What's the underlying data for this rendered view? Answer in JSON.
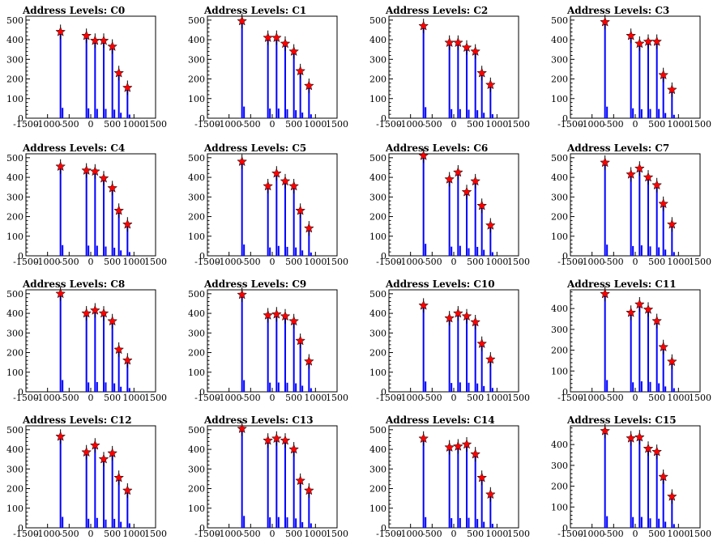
{
  "chart_data": [
    {
      "title": "Address Levels: C0",
      "type": "bar",
      "xlim": [
        -1500,
        1500
      ],
      "ylim": [
        0,
        520
      ],
      "xticks": [
        "-1500",
        "-1000",
        "-500",
        "0",
        "500",
        "1000",
        "1500"
      ],
      "yticks": [
        "0",
        "100",
        "200",
        "300",
        "400",
        "500"
      ],
      "x": [
        -700,
        -100,
        100,
        300,
        500,
        650,
        850
      ],
      "values": [
        440,
        420,
        395,
        395,
        365,
        230,
        155
      ]
    },
    {
      "title": "Address Levels: C1",
      "type": "bar",
      "xlim": [
        -1500,
        1500
      ],
      "ylim": [
        0,
        520
      ],
      "xticks": [
        "-1500",
        "-1000",
        "-500",
        "0",
        "500",
        "1000",
        "1500"
      ],
      "yticks": [
        "0",
        "100",
        "200",
        "300",
        "400",
        "500"
      ],
      "x": [
        -700,
        -100,
        100,
        300,
        500,
        650,
        850
      ],
      "values": [
        495,
        410,
        410,
        380,
        340,
        240,
        165
      ]
    },
    {
      "title": "Address Levels: C2",
      "type": "bar",
      "xlim": [
        -1500,
        1500
      ],
      "ylim": [
        0,
        520
      ],
      "xticks": [
        "-1500",
        "-1000",
        "-500",
        "0",
        "500",
        "1000",
        "1500"
      ],
      "yticks": [
        "0",
        "100",
        "200",
        "300",
        "400",
        "500"
      ],
      "x": [
        -700,
        -100,
        100,
        300,
        500,
        650,
        850
      ],
      "values": [
        470,
        385,
        385,
        360,
        340,
        230,
        170
      ]
    },
    {
      "title": "Address Levels: C3",
      "type": "bar",
      "xlim": [
        -1500,
        1500
      ],
      "ylim": [
        0,
        520
      ],
      "xticks": [
        "-1500",
        "-1000",
        "-500",
        "0",
        "500",
        "1000",
        "1500"
      ],
      "yticks": [
        "0",
        "100",
        "200",
        "300",
        "400",
        "500"
      ],
      "x": [
        -700,
        -100,
        100,
        300,
        500,
        650,
        850
      ],
      "values": [
        490,
        420,
        380,
        390,
        390,
        220,
        145
      ]
    },
    {
      "title": "Address Levels: C4",
      "type": "bar",
      "xlim": [
        -1500,
        1500
      ],
      "ylim": [
        0,
        520
      ],
      "xticks": [
        "-1500",
        "-1000",
        "-500",
        "0",
        "500",
        "1000",
        "1500"
      ],
      "yticks": [
        "0",
        "100",
        "200",
        "300",
        "400",
        "500"
      ],
      "x": [
        -700,
        -100,
        100,
        300,
        500,
        650,
        850
      ],
      "values": [
        455,
        435,
        430,
        395,
        345,
        230,
        160
      ]
    },
    {
      "title": "Address Levels: C5",
      "type": "bar",
      "xlim": [
        -1500,
        1500
      ],
      "ylim": [
        0,
        520
      ],
      "xticks": [
        "-1500",
        "-1000",
        "-500",
        "0",
        "500",
        "1000",
        "1500"
      ],
      "yticks": [
        "0",
        "100",
        "200",
        "300",
        "400",
        "500"
      ],
      "x": [
        -700,
        -100,
        100,
        300,
        500,
        650,
        850
      ],
      "values": [
        480,
        355,
        420,
        380,
        355,
        230,
        140
      ]
    },
    {
      "title": "Address Levels: C6",
      "type": "bar",
      "xlim": [
        -1500,
        1500
      ],
      "ylim": [
        0,
        520
      ],
      "xticks": [
        "-1500",
        "-1000",
        "-500",
        "0",
        "500",
        "1000",
        "1500"
      ],
      "yticks": [
        "0",
        "100",
        "200",
        "300",
        "400",
        "500"
      ],
      "x": [
        -700,
        -100,
        100,
        300,
        500,
        650,
        850
      ],
      "values": [
        510,
        390,
        425,
        325,
        380,
        255,
        155
      ]
    },
    {
      "title": "Address Levels: C7",
      "type": "bar",
      "xlim": [
        -1500,
        1500
      ],
      "ylim": [
        0,
        520
      ],
      "xticks": [
        "-1500",
        "-1000",
        "-500",
        "0",
        "500",
        "1000",
        "1500"
      ],
      "yticks": [
        "0",
        "100",
        "200",
        "300",
        "400",
        "500"
      ],
      "x": [
        -700,
        -100,
        100,
        300,
        500,
        650,
        850
      ],
      "values": [
        475,
        415,
        445,
        400,
        360,
        265,
        160
      ]
    },
    {
      "title": "Address Levels: C8",
      "type": "bar",
      "xlim": [
        -1500,
        1500
      ],
      "ylim": [
        0,
        520
      ],
      "xticks": [
        "-1500",
        "-1000",
        "-500",
        "0",
        "500",
        "1000",
        "1500"
      ],
      "yticks": [
        "0",
        "100",
        "200",
        "300",
        "400",
        "500"
      ],
      "x": [
        -700,
        -100,
        100,
        300,
        500,
        650,
        850
      ],
      "values": [
        500,
        400,
        415,
        400,
        360,
        215,
        160
      ]
    },
    {
      "title": "Address Levels: C9",
      "type": "bar",
      "xlim": [
        -1500,
        1500
      ],
      "ylim": [
        0,
        520
      ],
      "xticks": [
        "-1500",
        "-1000",
        "-500",
        "0",
        "500",
        "1000",
        "1500"
      ],
      "yticks": [
        "0",
        "100",
        "200",
        "300",
        "400",
        "500"
      ],
      "x": [
        -700,
        -100,
        100,
        300,
        500,
        650,
        850
      ],
      "values": [
        495,
        390,
        395,
        385,
        360,
        260,
        155
      ]
    },
    {
      "title": "Address Levels: C10",
      "type": "bar",
      "xlim": [
        -1500,
        1500
      ],
      "ylim": [
        0,
        520
      ],
      "xticks": [
        "-1500",
        "-1000",
        "-500",
        "0",
        "500",
        "1000",
        "1500"
      ],
      "yticks": [
        "0",
        "100",
        "200",
        "300",
        "400",
        "500"
      ],
      "x": [
        -700,
        -100,
        100,
        300,
        500,
        650,
        850
      ],
      "values": [
        440,
        375,
        400,
        385,
        355,
        245,
        165
      ]
    },
    {
      "title": "Address Levels: C11",
      "type": "bar",
      "xlim": [
        -1500,
        1500
      ],
      "ylim": [
        0,
        490
      ],
      "xticks": [
        "-1500",
        "-1000",
        "-500",
        "0",
        "500",
        "1000",
        "1500"
      ],
      "yticks": [
        "0",
        "100",
        "200",
        "300",
        "400"
      ],
      "x": [
        -700,
        -100,
        100,
        300,
        500,
        650,
        850
      ],
      "values": [
        470,
        380,
        420,
        395,
        340,
        215,
        145
      ]
    },
    {
      "title": "Address Levels: C12",
      "type": "bar",
      "xlim": [
        -1500,
        1500
      ],
      "ylim": [
        0,
        520
      ],
      "xticks": [
        "-1500",
        "-1000",
        "-500",
        "0",
        "500",
        "1000",
        "1500"
      ],
      "yticks": [
        "0",
        "100",
        "200",
        "300",
        "400",
        "500"
      ],
      "x": [
        -700,
        -100,
        100,
        300,
        500,
        650,
        850
      ],
      "values": [
        465,
        385,
        420,
        350,
        380,
        255,
        190
      ]
    },
    {
      "title": "Address Levels: C13",
      "type": "bar",
      "xlim": [
        -1500,
        1500
      ],
      "ylim": [
        0,
        520
      ],
      "xticks": [
        "-1500",
        "-1000",
        "-500",
        "0",
        "500",
        "1000",
        "1500"
      ],
      "yticks": [
        "0",
        "100",
        "200",
        "300",
        "400",
        "500"
      ],
      "x": [
        -700,
        -100,
        100,
        300,
        500,
        650,
        850
      ],
      "values": [
        505,
        445,
        455,
        445,
        400,
        240,
        190
      ]
    },
    {
      "title": "Address Levels: C14",
      "type": "bar",
      "xlim": [
        -1500,
        1500
      ],
      "ylim": [
        0,
        520
      ],
      "xticks": [
        "-1500",
        "-1000",
        "-500",
        "0",
        "500",
        "1000",
        "1500"
      ],
      "yticks": [
        "0",
        "100",
        "200",
        "300",
        "400",
        "500"
      ],
      "x": [
        -700,
        -100,
        100,
        300,
        500,
        650,
        850
      ],
      "values": [
        455,
        410,
        415,
        425,
        375,
        255,
        170
      ]
    },
    {
      "title": "Address Levels: C15",
      "type": "bar",
      "xlim": [
        -1500,
        1500
      ],
      "ylim": [
        0,
        490
      ],
      "xticks": [
        "-1500",
        "-1000",
        "-500",
        "0",
        "500",
        "1000",
        "1500"
      ],
      "yticks": [
        "0",
        "100",
        "200",
        "300",
        "400"
      ],
      "x": [
        -700,
        -100,
        100,
        300,
        500,
        650,
        850
      ],
      "values": [
        465,
        430,
        435,
        380,
        365,
        245,
        150
      ]
    }
  ]
}
